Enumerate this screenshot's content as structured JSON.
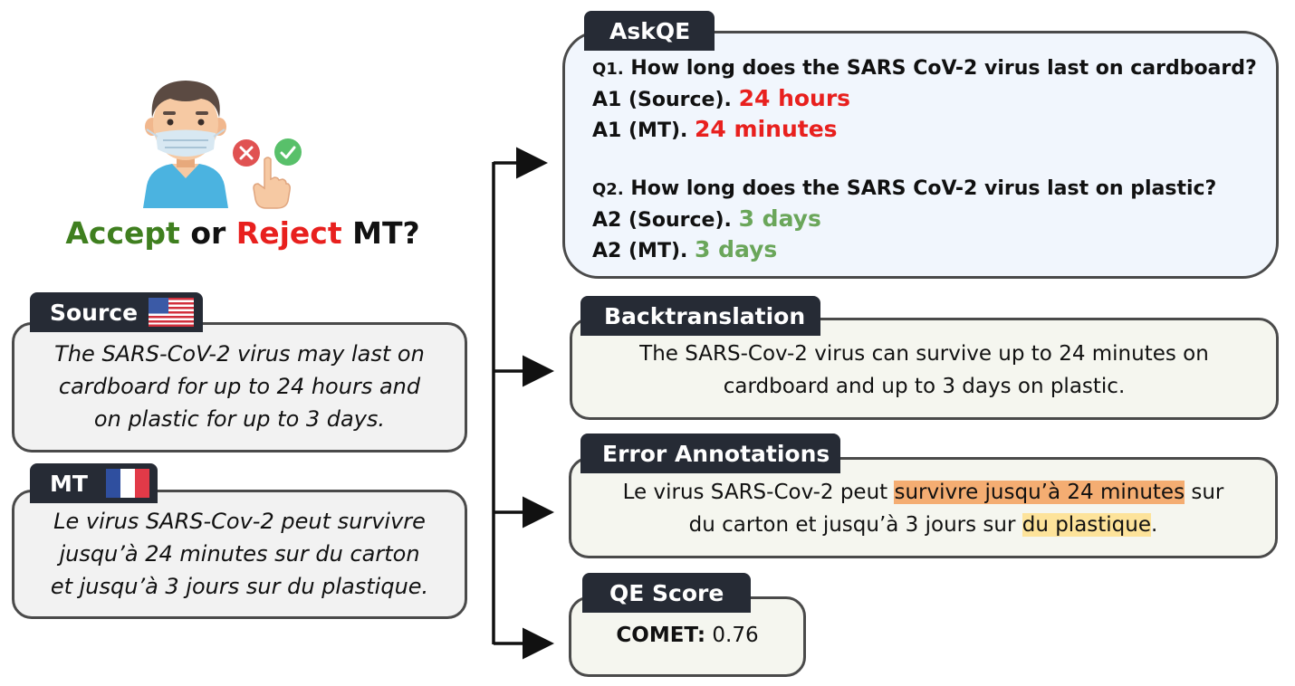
{
  "decision": {
    "accept": "Accept",
    "or": "or",
    "reject": "Reject",
    "mt": "MT?"
  },
  "source": {
    "tag": "Source",
    "text_1": "The SARS-CoV-2 virus may last on",
    "text_2": "cardboard for up to 24 hours and",
    "text_3": "on plastic for up to 3 days."
  },
  "mt": {
    "tag": "MT",
    "text_1": "Le virus SARS-Cov-2 peut survivre",
    "text_2": "jusqu’à 24 minutes sur du carton",
    "text_3": "et jusqu’à 3 jours sur du plastique."
  },
  "askqe": {
    "tag": "AskQE",
    "q1_prefix": "Q1.",
    "q1": "How long does the SARS CoV-2 virus last on cardboard?",
    "a1_source_label": "A1 (Source).",
    "a1_source": "24 hours",
    "a1_mt_label": "A1 (MT).",
    "a1_mt": "24 minutes",
    "q2_prefix": "Q2.",
    "q2": "How long does the SARS CoV-2 virus last on plastic?",
    "a2_source_label": "A2 (Source).",
    "a2_source": "3 days",
    "a2_mt_label": "A2 (MT).",
    "a2_mt": "3 days"
  },
  "backtranslation": {
    "tag": "Backtranslation",
    "text_1": "The SARS-Cov-2 virus can survive up to 24 minutes on",
    "text_2": "cardboard and up to 3 days on plastic."
  },
  "error_annotations": {
    "tag": "Error Annotations",
    "pre": "Le virus SARS-Cov-2 peut ",
    "major_error": "survivre jusqu’à 24 minutes",
    "mid": " sur",
    "line2_pre": "du carton et jusqu’à 3 jours sur ",
    "minor_error": "du plastique",
    "line2_end": "."
  },
  "qe_score": {
    "tag": "QE Score",
    "metric": "COMET:",
    "value": "0.76"
  },
  "colors": {
    "accept": "#3f7f1f",
    "reject": "#e8201e",
    "tag_bg": "#262b35",
    "askqe_bg": "#f1f6fd",
    "source_bg": "#f2f2f2",
    "pale_bg": "#f5f6ef",
    "major_highlight": "#f4ad72",
    "minor_highlight": "#fde39a"
  },
  "icons": [
    "masked-person-icon",
    "reject-x-icon",
    "accept-check-icon",
    "pointing-hand-icon",
    "us-flag-icon",
    "france-flag-icon"
  ]
}
